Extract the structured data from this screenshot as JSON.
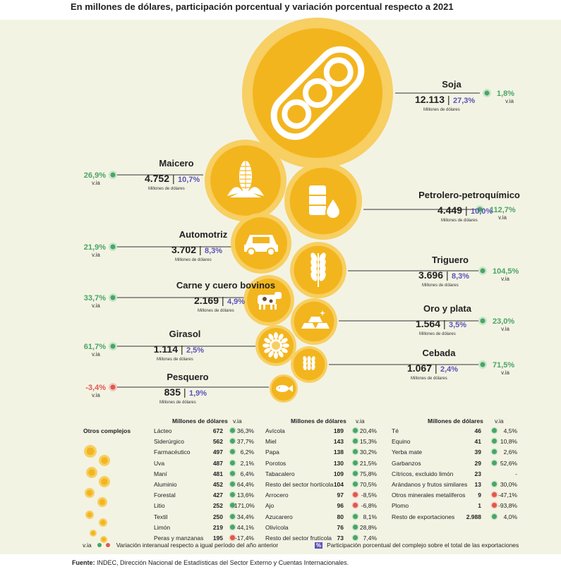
{
  "subtitle": "En millones de dólares, participación porcentual y variación porcentual respecto a 2021",
  "footer": {
    "source_label": "Fuente:",
    "source_text": "INDEC, Dirección Nacional de Estadísticas del Sector Externo y Cuentas Internacionales."
  },
  "units_label": "Millones de dólares",
  "via_label": "v.ia",
  "colors": {
    "gold": "#f3b51e",
    "gold_light": "#f7cf62",
    "text_purple": "#5b53b8",
    "positive": "#4aa564",
    "negative": "#e0584b",
    "panel": "#f3f3e4"
  },
  "chart_data": {
    "type": "bubble",
    "subtitle": "En millones de dólares, participación porcentual y variación porcentual respecto a 2021",
    "complexes": [
      {
        "name": "Soja",
        "value": "12.113",
        "share": "27,3%",
        "via": "1,8%",
        "icon": "soy-icon"
      },
      {
        "name": "Maicero",
        "value": "4.752",
        "share": "10,7%",
        "via": "26,9%",
        "icon": "corn-icon"
      },
      {
        "name": "Petrolero-petroquímico",
        "value": "4.449",
        "share": "10,0%",
        "via": "112,7%",
        "icon": "oil-icon"
      },
      {
        "name": "Automotriz",
        "value": "3.702",
        "share": "8,3%",
        "via": "21,9%",
        "icon": "car-icon"
      },
      {
        "name": "Triguero",
        "value": "3.696",
        "share": "8,3%",
        "via": "104,5%",
        "icon": "wheat-icon"
      },
      {
        "name": "Carne y cuero bovinos",
        "value": "2.169",
        "share": "4,9%",
        "via": "33,7%",
        "icon": "cow-icon"
      },
      {
        "name": "Oro y plata",
        "value": "1.564",
        "share": "3,5%",
        "via": "23,0%",
        "icon": "gold-bars-icon"
      },
      {
        "name": "Girasol",
        "value": "1.114",
        "share": "2,5%",
        "via": "61,7%",
        "icon": "sunflower-icon"
      },
      {
        "name": "Cebada",
        "value": "1.067",
        "share": "2,4%",
        "via": "71,5%",
        "icon": "barley-icon"
      },
      {
        "name": "Pesquero",
        "value": "835",
        "share": "1,9%",
        "via": "-3,4%",
        "icon": "fish-icon"
      }
    ],
    "others": {
      "title": "Otros complejos",
      "col_value_header": "Millones de dólares",
      "col_via_header": "v.ia",
      "columns": [
        [
          {
            "name": "Lácteo",
            "value": "672",
            "via": "36,3%"
          },
          {
            "name": "Siderúrgico",
            "value": "562",
            "via": "37,7%"
          },
          {
            "name": "Farmacéutico",
            "value": "497",
            "via": "6,2%"
          },
          {
            "name": "Uva",
            "value": "487",
            "via": "2,1%"
          },
          {
            "name": "Maní",
            "value": "481",
            "via": "6,4%"
          },
          {
            "name": "Aluminio",
            "value": "452",
            "via": "64,4%"
          },
          {
            "name": "Forestal",
            "value": "427",
            "via": "13,6%"
          },
          {
            "name": "Litio",
            "value": "252",
            "via": "171,0%"
          },
          {
            "name": "Textil",
            "value": "250",
            "via": "34,4%"
          },
          {
            "name": "Limón",
            "value": "219",
            "via": "44,1%"
          },
          {
            "name": "Peras y manzanas",
            "value": "195",
            "via": "-17,4%"
          }
        ],
        [
          {
            "name": "Avícola",
            "value": "189",
            "via": "20,4%"
          },
          {
            "name": "Miel",
            "value": "143",
            "via": "15,3%"
          },
          {
            "name": "Papa",
            "value": "138",
            "via": "30,2%"
          },
          {
            "name": "Porotos",
            "value": "130",
            "via": "21,5%"
          },
          {
            "name": "Tabacalero",
            "value": "109",
            "via": "75,8%"
          },
          {
            "name": "Resto del sector hortícola",
            "value": "104",
            "via": "70,5%"
          },
          {
            "name": "Arrocero",
            "value": "97",
            "via": "-8,5%"
          },
          {
            "name": "Ajo",
            "value": "96",
            "via": "-6,8%"
          },
          {
            "name": "Azucarero",
            "value": "80",
            "via": "8,1%"
          },
          {
            "name": "Olivícola",
            "value": "76",
            "via": "28,8%"
          },
          {
            "name": "Resto del sector frutícola",
            "value": "73",
            "via": "7,4%"
          }
        ],
        [
          {
            "name": "Té",
            "value": "46",
            "via": "4,5%"
          },
          {
            "name": "Equino",
            "value": "41",
            "via": "10,8%"
          },
          {
            "name": "Yerba mate",
            "value": "39",
            "via": "2,6%"
          },
          {
            "name": "Garbanzos",
            "value": "29",
            "via": "52,6%"
          },
          {
            "name": "Cítricos, excluido limón",
            "value": "23",
            "via": "-"
          },
          {
            "name": "Arándanos y frutos similares",
            "value": "13",
            "via": "30,0%"
          },
          {
            "name": "Otros minerales metalíferos",
            "value": "9",
            "via": "-47,1%"
          },
          {
            "name": "Plomo",
            "value": "1",
            "via": "-93,8%"
          },
          {
            "name": "Resto de exportaciones",
            "value": "2.988",
            "via": "4,0%"
          }
        ]
      ]
    },
    "legend": {
      "via_text": "Variación interanual respecto a igual período del año anterior",
      "pct_symbol": "%",
      "pct_text": "Participación porcentual del complejo sobre el total de las exportaciones"
    }
  }
}
